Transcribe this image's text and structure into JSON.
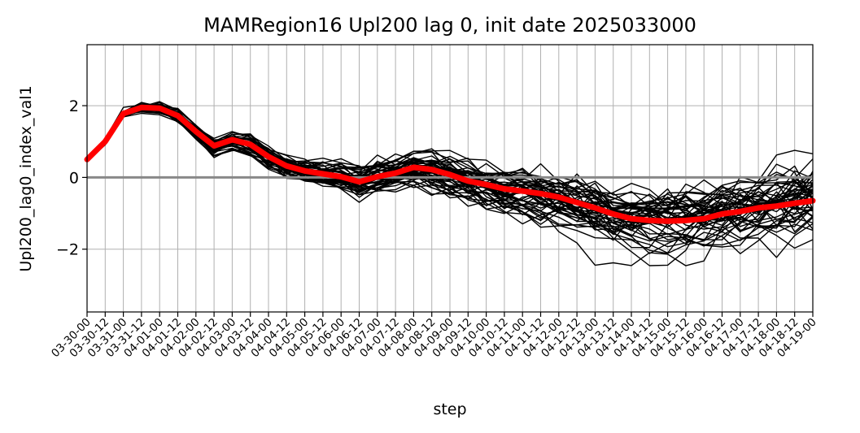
{
  "chart_data": {
    "type": "line",
    "title": "MAMRegion16 Upl200 lag 0, init date 2025033000",
    "xlabel": "step",
    "ylabel": "Upl200_lag0_index_val1",
    "categories": [
      "03-30-00",
      "03-30-12",
      "03-31-00",
      "03-31-12",
      "04-01-00",
      "04-01-12",
      "04-02-00",
      "04-02-12",
      "04-03-00",
      "04-03-12",
      "04-04-00",
      "04-04-12",
      "04-05-00",
      "04-05-12",
      "04-06-00",
      "04-06-12",
      "04-07-00",
      "04-07-12",
      "04-08-00",
      "04-08-12",
      "04-09-00",
      "04-09-12",
      "04-10-00",
      "04-10-12",
      "04-11-00",
      "04-11-12",
      "04-12-00",
      "04-12-12",
      "04-13-00",
      "04-13-12",
      "04-14-00",
      "04-14-12",
      "04-15-00",
      "04-15-12",
      "04-16-00",
      "04-16-12",
      "04-17-00",
      "04-17-12",
      "04-18-00",
      "04-18-12",
      "04-19-00"
    ],
    "ylim": [
      -3.75,
      3.7
    ],
    "yticks": [
      -2,
      0,
      2
    ],
    "grid": true,
    "zero_line": {
      "y": 0,
      "color": "#888888"
    },
    "ensemble": {
      "members": 50,
      "color": "#000000"
    },
    "series": [
      {
        "color": "#ff0000",
        "values": [
          0.5,
          1.0,
          1.78,
          1.95,
          1.93,
          1.72,
          1.28,
          0.88,
          1.05,
          0.92,
          0.58,
          0.32,
          0.18,
          0.1,
          0.02,
          -0.12,
          0.02,
          0.12,
          0.28,
          0.22,
          0.08,
          -0.1,
          -0.2,
          -0.32,
          -0.38,
          -0.45,
          -0.55,
          -0.7,
          -0.85,
          -1.02,
          -1.15,
          -1.2,
          -1.22,
          -1.2,
          -1.15,
          -1.02,
          -0.95,
          -0.85,
          -0.8,
          -0.72,
          -0.65
        ]
      }
    ]
  }
}
